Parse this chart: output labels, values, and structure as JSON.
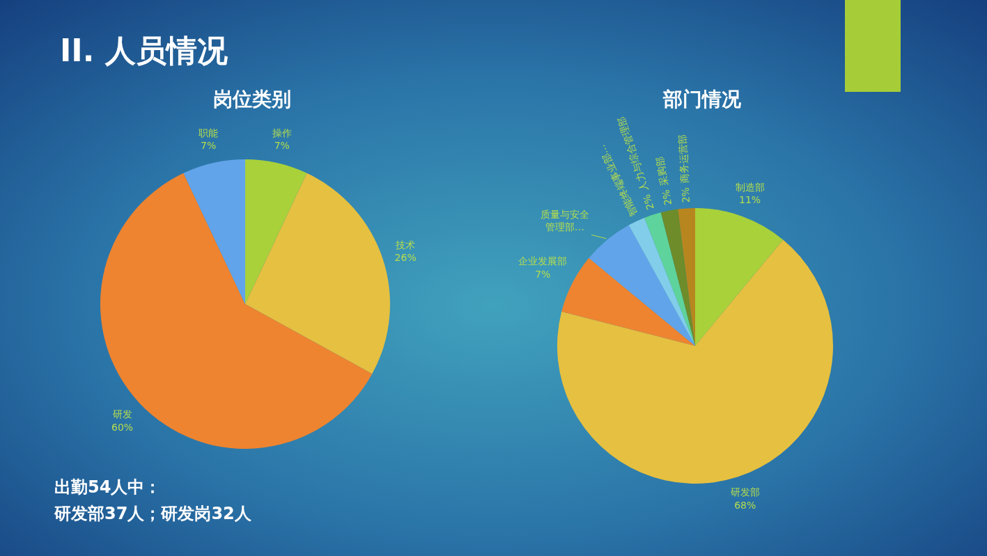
{
  "chart_data": [
    {
      "type": "pie",
      "title": "岗位类别",
      "categories": [
        "操作",
        "技术",
        "研发",
        "职能"
      ],
      "values": [
        7,
        26,
        60,
        7
      ],
      "colors": [
        "#a8d13a",
        "#e6c040",
        "#ee8430",
        "#62a4ea"
      ],
      "value_labels": [
        "7%",
        "26%",
        "60%",
        "7%"
      ],
      "annotations": [
        "II. 人员情况",
        "出勤54人中：",
        "研发部37人；研发岗32人"
      ]
    },
    {
      "type": "pie",
      "title": "部门情况",
      "categories": [
        "制造部",
        "研发部",
        "企业发展部",
        "质量与安全管理部…",
        "智能终端事业部…",
        "人力与综合管理部",
        "采购部",
        "商务运营部"
      ],
      "values": [
        11,
        68,
        7,
        6,
        2,
        2,
        2,
        2
      ],
      "colors": [
        "#a8d13a",
        "#e6c040",
        "#ee8430",
        "#62a4ea",
        "#82cdea",
        "#5fd39c",
        "#6e8c2a",
        "#b8861e"
      ],
      "value_labels": [
        "11%",
        "68%",
        "7%",
        null,
        null,
        "2%",
        "2%",
        "2%"
      ]
    }
  ]
}
